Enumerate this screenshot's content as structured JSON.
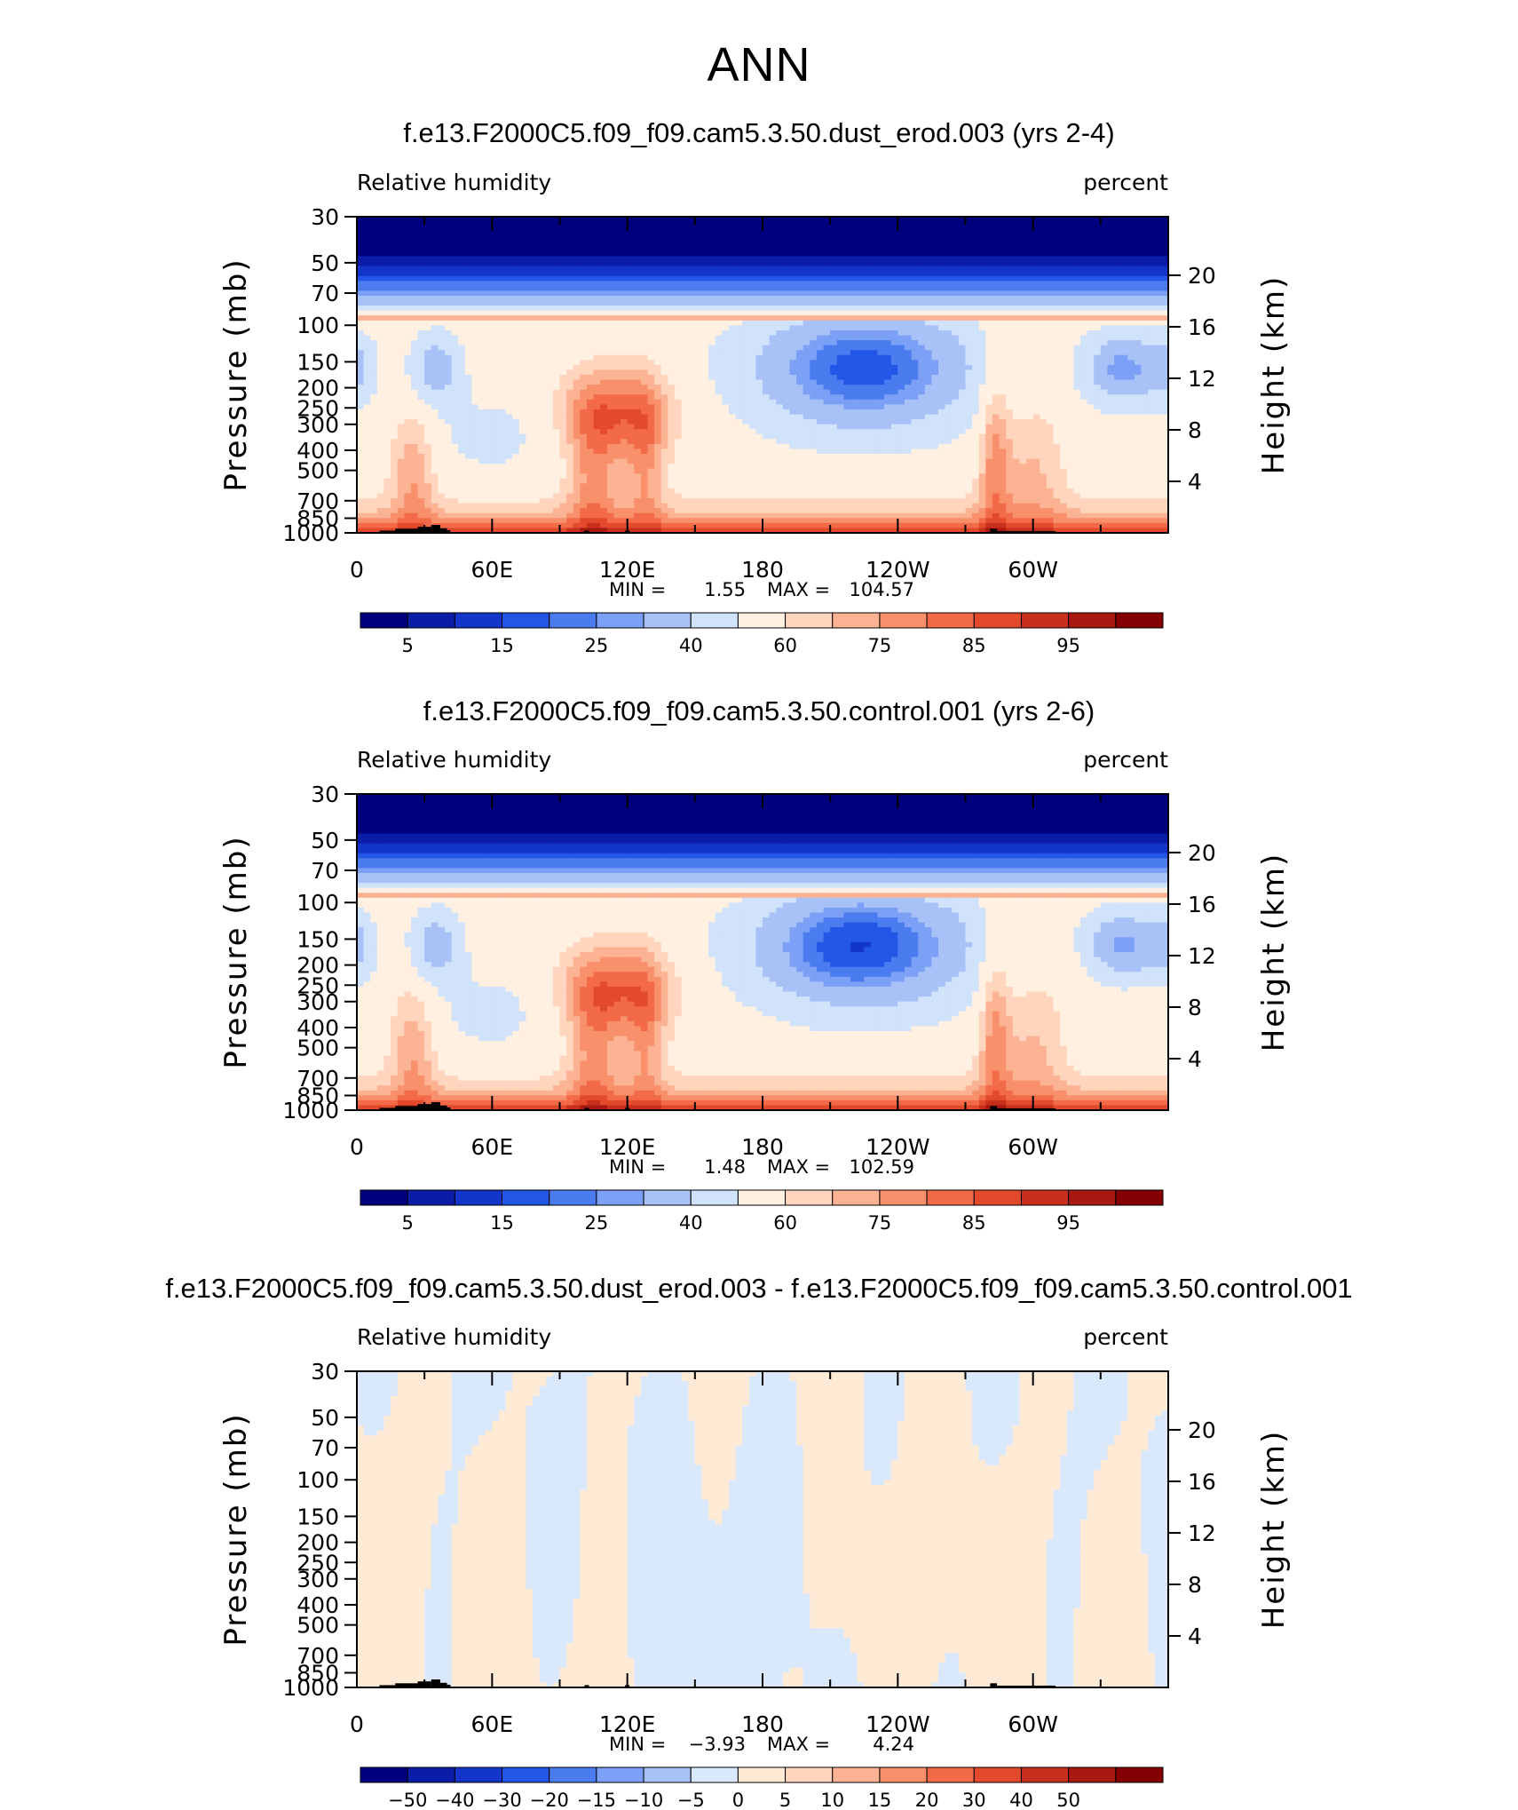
{
  "figure": {
    "title": "ANN"
  },
  "palettes": {
    "rh": [
      "#00007f",
      "#0b1da8",
      "#1435c9",
      "#2256e6",
      "#4a7cf0",
      "#7ba0f5",
      "#a8c2f8",
      "#d1e2fb",
      "#fff0e2",
      "#ffd6bd",
      "#fcb394",
      "#f8906c",
      "#f26a47",
      "#e34a2c",
      "#c8301d",
      "#a81912",
      "#850003"
    ],
    "diff": [
      "#00007f",
      "#0b1da8",
      "#1435c9",
      "#2256e6",
      "#4a7cf0",
      "#7ba0f5",
      "#a8c2f8",
      "#d9e8fb",
      "#ffead6",
      "#ffd6bd",
      "#fcb394",
      "#f8906c",
      "#f26a47",
      "#e34a2c",
      "#c8301d",
      "#a81912",
      "#850003"
    ]
  },
  "chart_data": [
    {
      "type": "heatmap",
      "title": "f.e13.F2000C5.f09_f09.cam5.3.50.dust_erod.003 (yrs 2-4)",
      "left_label": "Relative humidity",
      "right_label": "percent",
      "ylabel": "Pressure (mb)",
      "y2label": "Height (km)",
      "x_ticks": [
        "0",
        "60E",
        "120E",
        "180",
        "120W",
        "60W"
      ],
      "y_ticks": [
        "30",
        "50",
        "70",
        "100",
        "150",
        "200",
        "250",
        "300",
        "400",
        "500",
        "700",
        "850",
        "1000"
      ],
      "y2_ticks": [
        "20",
        "16",
        "12",
        "8",
        "4"
      ],
      "stats": {
        "min_label": "MIN =",
        "min": "1.55",
        "max_label": "MAX =",
        "max": "104.57"
      },
      "colorbar_labels": [
        "5",
        "15",
        "25",
        "40",
        "60",
        "75",
        "85",
        "95"
      ],
      "palette": "rh",
      "field": "rh"
    },
    {
      "type": "heatmap",
      "title": "f.e13.F2000C5.f09_f09.cam5.3.50.control.001 (yrs 2-6)",
      "left_label": "Relative humidity",
      "right_label": "percent",
      "ylabel": "Pressure (mb)",
      "y2label": "Height (km)",
      "x_ticks": [
        "0",
        "60E",
        "120E",
        "180",
        "120W",
        "60W"
      ],
      "y_ticks": [
        "30",
        "50",
        "70",
        "100",
        "150",
        "200",
        "250",
        "300",
        "400",
        "500",
        "700",
        "850",
        "1000"
      ],
      "y2_ticks": [
        "20",
        "16",
        "12",
        "8",
        "4"
      ],
      "stats": {
        "min_label": "MIN =",
        "min": "1.48",
        "max_label": "MAX =",
        "max": "102.59"
      },
      "colorbar_labels": [
        "5",
        "15",
        "25",
        "40",
        "60",
        "75",
        "85",
        "95"
      ],
      "palette": "rh",
      "field": "rh"
    },
    {
      "type": "heatmap",
      "title": "f.e13.F2000C5.f09_f09.cam5.3.50.dust_erod.003 - f.e13.F2000C5.f09_f09.cam5.3.50.control.001",
      "left_label": "Relative humidity",
      "right_label": "percent",
      "ylabel": "Pressure (mb)",
      "y2label": "Height (km)",
      "x_ticks": [
        "0",
        "60E",
        "120E",
        "180",
        "120W",
        "60W"
      ],
      "y_ticks": [
        "30",
        "50",
        "70",
        "100",
        "150",
        "200",
        "250",
        "300",
        "400",
        "500",
        "700",
        "850",
        "1000"
      ],
      "y2_ticks": [
        "20",
        "16",
        "12",
        "8",
        "4"
      ],
      "stats": {
        "min_label": "MIN =",
        "min": "−3.93",
        "max_label": "MAX =",
        "max": "4.24"
      },
      "colorbar_labels": [
        "−50",
        "−40",
        "−30",
        "−20",
        "−15",
        "−10",
        "−5",
        "0",
        "5",
        "10",
        "15",
        "20",
        "30",
        "40",
        "50"
      ],
      "palette": "diff",
      "field": "diff"
    }
  ]
}
